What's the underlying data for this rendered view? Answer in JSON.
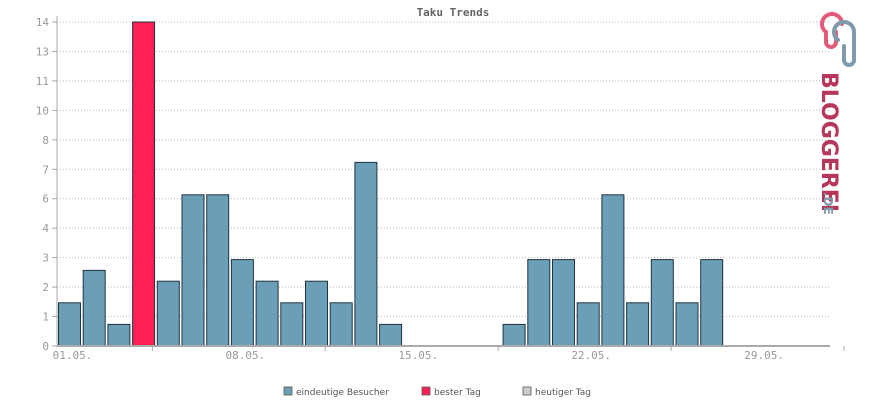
{
  "chart_data": {
    "type": "bar",
    "title": "Taku Trends",
    "y_ticks": [
      "0",
      "1",
      "2",
      "3",
      "4",
      "6",
      "7",
      "8",
      "10",
      "11",
      "13",
      "14"
    ],
    "x_ticks": [
      "01.05.",
      "08.05.",
      "15.05.",
      "22.05.",
      "29.05."
    ],
    "values": [
      2,
      3.5,
      1,
      15,
      3,
      7,
      7,
      4,
      3,
      2,
      3,
      2,
      8.5,
      1,
      0,
      0,
      0,
      0,
      1,
      4,
      4,
      2,
      7,
      2,
      4,
      2,
      4,
      0,
      0,
      0,
      0
    ],
    "best_day_index": 3,
    "series": [
      {
        "name": "eindeutige Besucher",
        "color": "#6b9fb8"
      },
      {
        "name": "bester Tag",
        "color": "#ff1f55"
      },
      {
        "name": "heutiger Tag",
        "color": "#cccccc"
      }
    ],
    "grid": true,
    "legend_position": "bottom"
  },
  "brand": {
    "name": "BLOGGEREI",
    "suffix": ".DE"
  }
}
